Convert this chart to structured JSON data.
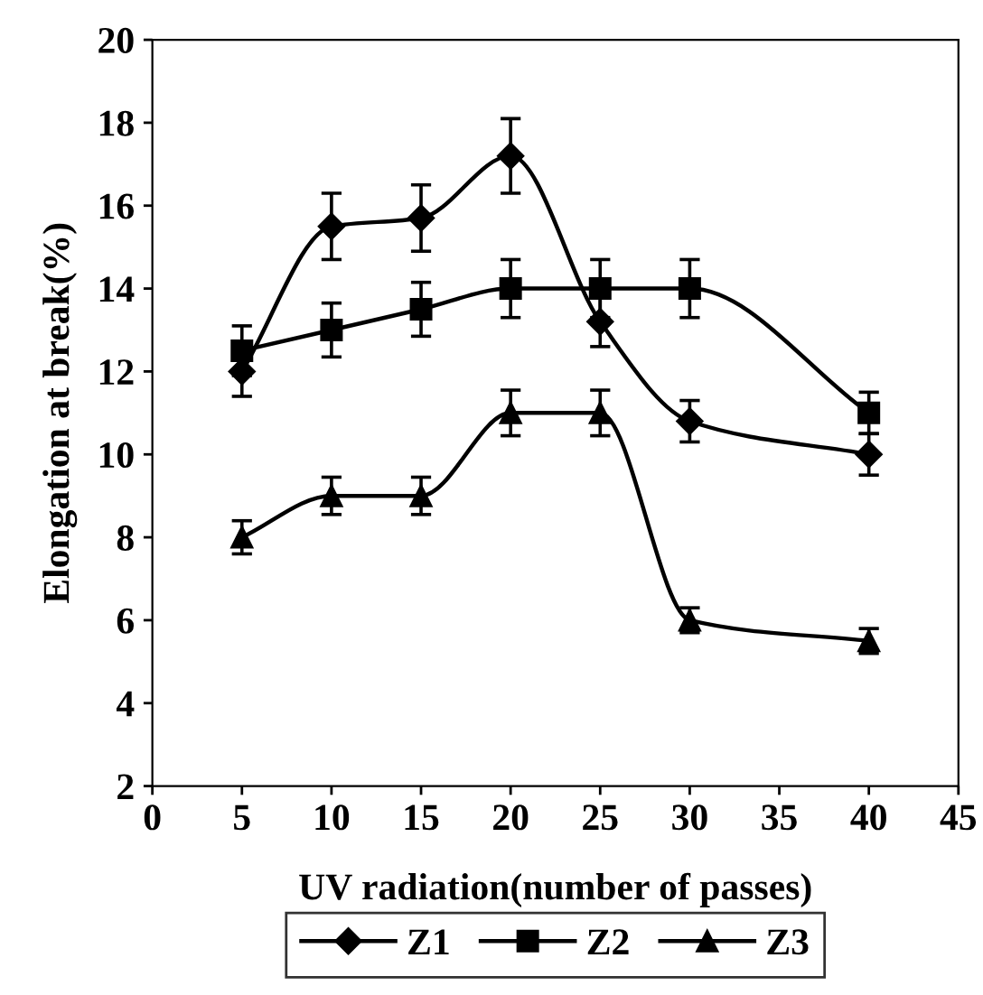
{
  "chart_data": {
    "type": "line",
    "xlabel": "UV radiation(number of passes)",
    "ylabel": "Elongation at break(%)",
    "x": [
      5,
      10,
      15,
      20,
      25,
      30,
      40
    ],
    "series": [
      {
        "name": "Z1",
        "color": "#000000",
        "marker": "diamond",
        "values": [
          12.0,
          15.5,
          15.7,
          17.2,
          13.2,
          10.8,
          10.0
        ],
        "errors": [
          0.6,
          0.8,
          0.8,
          0.9,
          0.6,
          0.5,
          0.5
        ]
      },
      {
        "name": "Z2",
        "color": "#000000",
        "marker": "square",
        "values": [
          12.5,
          13.0,
          13.5,
          14.0,
          14.0,
          14.0,
          11.0
        ],
        "errors": [
          0.6,
          0.65,
          0.65,
          0.7,
          0.7,
          0.7,
          0.5
        ]
      },
      {
        "name": "Z3",
        "color": "#000000",
        "marker": "triangle",
        "values": [
          8.0,
          9.0,
          9.0,
          11.0,
          11.0,
          6.0,
          5.5
        ],
        "errors": [
          0.4,
          0.45,
          0.45,
          0.55,
          0.55,
          0.3,
          0.3
        ]
      }
    ],
    "xlim": [
      0,
      45
    ],
    "xticks": [
      0,
      5,
      10,
      15,
      20,
      25,
      30,
      35,
      40,
      45
    ],
    "ylim": [
      2,
      20
    ],
    "yticks": [
      2,
      4,
      6,
      8,
      10,
      12,
      14,
      16,
      18,
      20
    ],
    "grid": false,
    "legend": "bottom",
    "line_style": "solid"
  }
}
